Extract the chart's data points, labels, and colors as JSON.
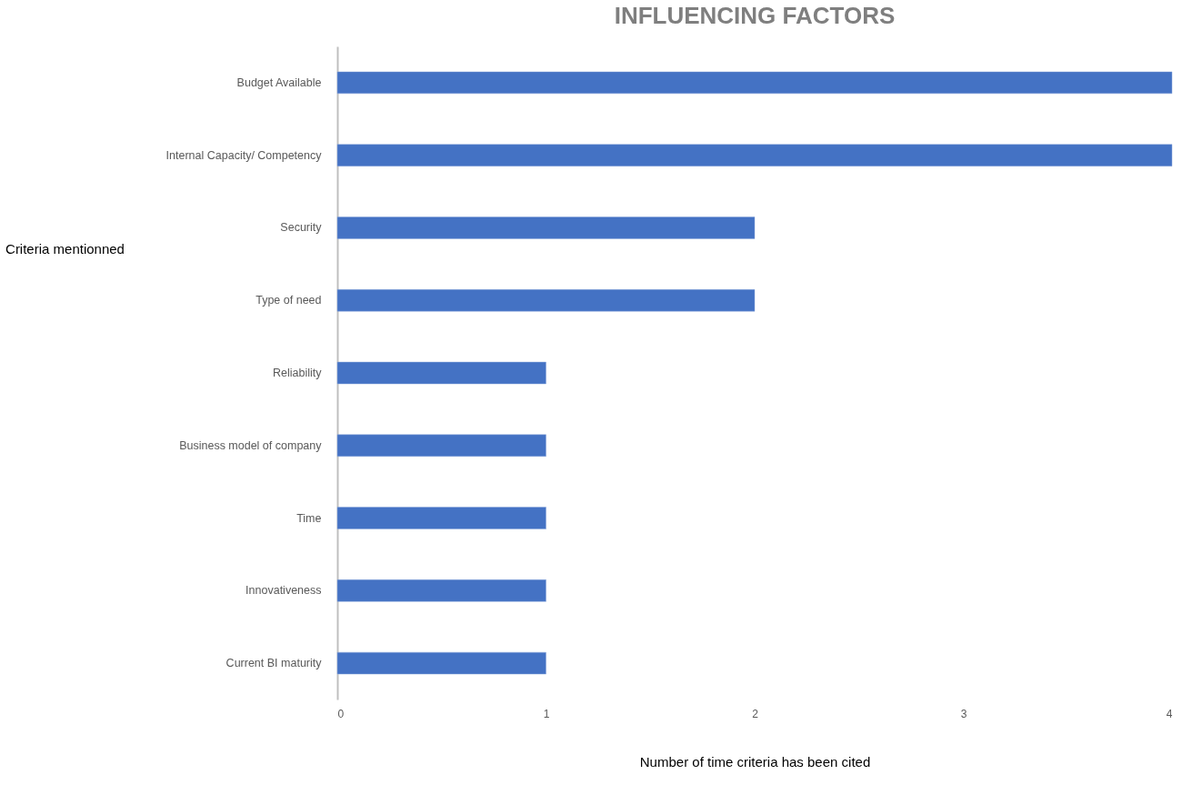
{
  "chart_data": {
    "type": "bar",
    "orientation": "horizontal",
    "title": "INFLUENCING FACTORS",
    "xlabel": "Number of time criteria has been cited",
    "ylabel": "Criteria mentionned",
    "categories": [
      "Budget Available",
      "Internal Capacity/ Competency",
      "Security",
      "Type of need",
      "Reliability",
      "Business model of company",
      "Time",
      "Innovativeness",
      "Current BI maturity"
    ],
    "values": [
      4,
      4,
      2,
      2,
      1,
      1,
      1,
      1,
      1
    ],
    "color": "#4472c4",
    "xlim": [
      0,
      4
    ],
    "xticks": [
      0,
      1,
      2,
      3,
      4
    ],
    "grid": false
  }
}
